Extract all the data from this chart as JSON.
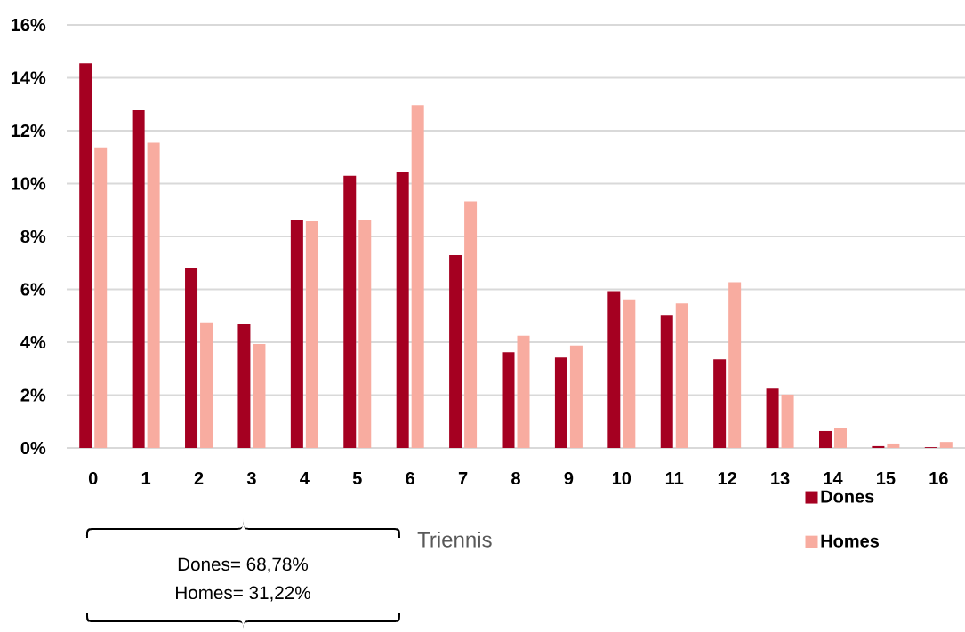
{
  "chart_data": {
    "type": "bar",
    "xlabel": "Triennis",
    "categories": [
      "0",
      "1",
      "2",
      "3",
      "4",
      "5",
      "6",
      "7",
      "8",
      "9",
      "10",
      "11",
      "12",
      "13",
      "14",
      "15",
      "16"
    ],
    "series": [
      {
        "name": "Dones",
        "color": "#a50021",
        "values": [
          14.55,
          12.77,
          6.81,
          4.68,
          8.63,
          10.29,
          10.42,
          7.29,
          3.62,
          3.42,
          5.93,
          5.03,
          3.35,
          2.24,
          0.64,
          0.07,
          0.03
        ]
      },
      {
        "name": "Homes",
        "color": "#f8aca0",
        "values": [
          11.37,
          11.55,
          4.75,
          3.93,
          8.57,
          8.63,
          12.97,
          9.33,
          4.24,
          3.87,
          5.62,
          5.47,
          6.27,
          2.02,
          0.75,
          0.17,
          0.23
        ]
      }
    ],
    "ylim": [
      0,
      16
    ],
    "yticks": [
      {
        "value": 0,
        "label": "0%"
      },
      {
        "value": 2,
        "label": "2%"
      },
      {
        "value": 4,
        "label": "4%"
      },
      {
        "value": 6,
        "label": "6%"
      },
      {
        "value": 8,
        "label": "8%"
      },
      {
        "value": 10,
        "label": "10%"
      },
      {
        "value": 12,
        "label": "12%"
      },
      {
        "value": 14,
        "label": "14%"
      },
      {
        "value": 16,
        "label": "16%"
      }
    ],
    "grid": "y",
    "legend": "bottom right",
    "annotations": [
      "Dones= 68,78%",
      "Homes= 31,22%"
    ]
  }
}
